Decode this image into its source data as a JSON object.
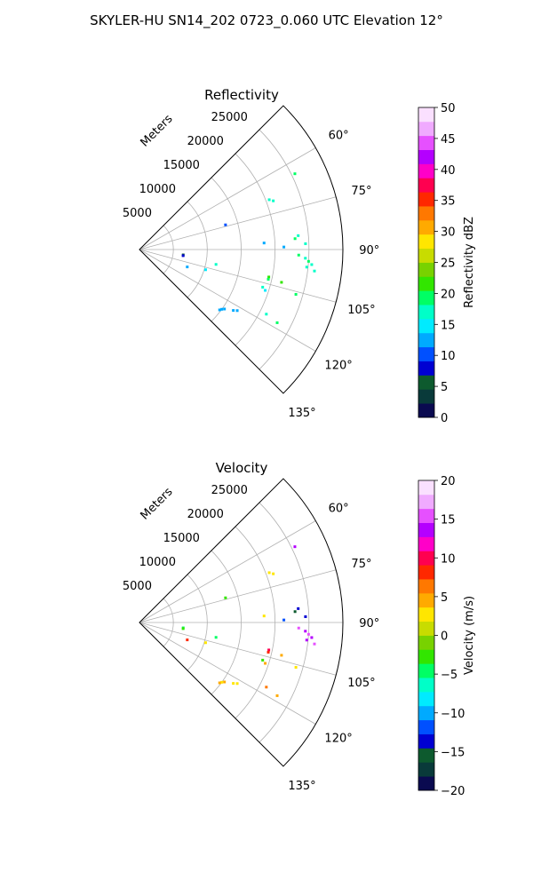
{
  "figure_title": "SKYLER-HU  SN14_202  0723_0.060 UTC Elevation 12°",
  "chart_data": [
    {
      "type": "scatter",
      "subtype": "polar-sector (PPI)",
      "title": "Reflectivity",
      "radial_label": "Meters",
      "r_ticks": [
        5000,
        10000,
        15000,
        20000,
        25000
      ],
      "r_tick_labels": [
        "5000",
        "10000",
        "15000",
        "20000",
        "25000"
      ],
      "rlim": [
        0,
        30000
      ],
      "theta_ticks": [
        60,
        75,
        90,
        105,
        120,
        135
      ],
      "theta_tick_labels": [
        "60°",
        "75°",
        "90°",
        "105°",
        "120°",
        "135°"
      ],
      "thetalim": [
        45,
        135
      ],
      "grid": true,
      "colorbar": {
        "label": "Reflectivity dBZ",
        "ticks": [
          0,
          5,
          10,
          15,
          20,
          25,
          30,
          35,
          40,
          45,
          50
        ],
        "tick_labels": [
          "0",
          "5",
          "10",
          "15",
          "20",
          "25",
          "30",
          "35",
          "40",
          "45",
          "50"
        ],
        "range": [
          0,
          50
        ],
        "colormap": [
          "#0a0a50",
          "#093a3a",
          "#0d5a2e",
          "#0000d2",
          "#0050ff",
          "#00aaff",
          "#00ebff",
          "#00ffc8",
          "#00ff64",
          "#32e600",
          "#78d200",
          "#c8dc00",
          "#ffe600",
          "#ffaa00",
          "#ff7800",
          "#ff2800",
          "#ff0050",
          "#ff00c8",
          "#b400ff",
          "#e650ff",
          "#f0aaff",
          "#fae0ff"
        ]
      },
      "points": [
        {
          "az": 64,
          "r": 25500,
          "v": 19
        },
        {
          "az": 69,
          "r": 20500,
          "v": 18
        },
        {
          "az": 70,
          "r": 21000,
          "v": 18
        },
        {
          "az": 74,
          "r": 13200,
          "v": 11
        },
        {
          "az": 85,
          "r": 23500,
          "v": 18
        },
        {
          "az": 86,
          "r": 23000,
          "v": 19
        },
        {
          "az": 87,
          "r": 18400,
          "v": 13
        },
        {
          "az": 88,
          "r": 24500,
          "v": 18
        },
        {
          "az": 89,
          "r": 21300,
          "v": 12
        },
        {
          "az": 92,
          "r": 23500,
          "v": 19
        },
        {
          "az": 93,
          "r": 24500,
          "v": 18
        },
        {
          "az": 94,
          "r": 25000,
          "v": 19
        },
        {
          "az": 95,
          "r": 25500,
          "v": 18
        },
        {
          "az": 96,
          "r": 24800,
          "v": 17
        },
        {
          "az": 97,
          "r": 26000,
          "v": 18
        },
        {
          "az": 97,
          "r": 6500,
          "v": 6
        },
        {
          "az": 98,
          "r": 6500,
          "v": 7
        },
        {
          "az": 101,
          "r": 11500,
          "v": 16
        },
        {
          "az": 102,
          "r": 19500,
          "v": 21
        },
        {
          "az": 103,
          "r": 19500,
          "v": 20
        },
        {
          "az": 103,
          "r": 21500,
          "v": 22
        },
        {
          "az": 106,
          "r": 24000,
          "v": 19
        },
        {
          "az": 107,
          "r": 10200,
          "v": 15
        },
        {
          "az": 107,
          "r": 19000,
          "v": 16
        },
        {
          "az": 108,
          "r": 19500,
          "v": 15
        },
        {
          "az": 110,
          "r": 7500,
          "v": 13
        },
        {
          "az": 117,
          "r": 21000,
          "v": 17
        },
        {
          "az": 118,
          "r": 23000,
          "v": 20
        },
        {
          "az": 122,
          "r": 17000,
          "v": 13
        },
        {
          "az": 123,
          "r": 16500,
          "v": 12
        },
        {
          "az": 125,
          "r": 15300,
          "v": 12
        },
        {
          "az": 126,
          "r": 15000,
          "v": 13
        },
        {
          "az": 127,
          "r": 14800,
          "v": 12
        }
      ]
    },
    {
      "type": "scatter",
      "subtype": "polar-sector (PPI)",
      "title": "Velocity",
      "radial_label": "Meters",
      "r_ticks": [
        5000,
        10000,
        15000,
        20000,
        25000
      ],
      "r_tick_labels": [
        "5000",
        "10000",
        "15000",
        "20000",
        "25000"
      ],
      "rlim": [
        0,
        30000
      ],
      "theta_ticks": [
        60,
        75,
        90,
        105,
        120,
        135
      ],
      "theta_tick_labels": [
        "60°",
        "75°",
        "90°",
        "105°",
        "120°",
        "135°"
      ],
      "thetalim": [
        45,
        135
      ],
      "grid": true,
      "colorbar": {
        "label": "Velocity (m/s)",
        "ticks": [
          -20,
          -15,
          -10,
          -5,
          0,
          5,
          10,
          15,
          20
        ],
        "tick_labels": [
          "−20",
          "−15",
          "−10",
          "−5",
          "0",
          "5",
          "10",
          "15",
          "20"
        ],
        "range": [
          -20,
          20
        ],
        "colormap": [
          "#0a0a50",
          "#093a3a",
          "#0d5a2e",
          "#0000d2",
          "#0050ff",
          "#00aaff",
          "#00ebff",
          "#00ffc8",
          "#00ff64",
          "#32e600",
          "#78d200",
          "#c8dc00",
          "#ffe600",
          "#ffaa00",
          "#ff7800",
          "#ff2800",
          "#ff0050",
          "#ff00c8",
          "#b400ff",
          "#e650ff",
          "#f0aaff",
          "#fae0ff"
        ]
      },
      "points": [
        {
          "az": 64,
          "r": 25500,
          "v": 14
        },
        {
          "az": 69,
          "r": 20500,
          "v": 3
        },
        {
          "az": 70,
          "r": 21000,
          "v": 3
        },
        {
          "az": 74,
          "r": 13200,
          "v": -2
        },
        {
          "az": 85,
          "r": 23500,
          "v": -14
        },
        {
          "az": 86,
          "r": 23000,
          "v": -15
        },
        {
          "az": 87,
          "r": 18400,
          "v": 2
        },
        {
          "az": 88,
          "r": 24500,
          "v": -13
        },
        {
          "az": 89,
          "r": 21300,
          "v": -11
        },
        {
          "az": 92,
          "r": 23500,
          "v": 15
        },
        {
          "az": 93,
          "r": 24500,
          "v": 14
        },
        {
          "az": 94,
          "r": 25000,
          "v": 16
        },
        {
          "az": 95,
          "r": 25500,
          "v": 13
        },
        {
          "az": 96,
          "r": 24800,
          "v": 14
        },
        {
          "az": 97,
          "r": 26000,
          "v": 15
        },
        {
          "az": 97,
          "r": 6500,
          "v": -4
        },
        {
          "az": 98,
          "r": 6500,
          "v": -3
        },
        {
          "az": 101,
          "r": 11500,
          "v": -5
        },
        {
          "az": 102,
          "r": 19500,
          "v": 10
        },
        {
          "az": 103,
          "r": 19500,
          "v": 9
        },
        {
          "az": 103,
          "r": 21500,
          "v": 4
        },
        {
          "az": 106,
          "r": 24000,
          "v": 2
        },
        {
          "az": 107,
          "r": 10200,
          "v": 3
        },
        {
          "az": 107,
          "r": 19000,
          "v": -3
        },
        {
          "az": 108,
          "r": 19500,
          "v": 4
        },
        {
          "az": 110,
          "r": 7500,
          "v": 8
        },
        {
          "az": 117,
          "r": 21000,
          "v": 6
        },
        {
          "az": 118,
          "r": 23000,
          "v": 4
        },
        {
          "az": 122,
          "r": 17000,
          "v": 2
        },
        {
          "az": 123,
          "r": 16500,
          "v": 3
        },
        {
          "az": 125,
          "r": 15300,
          "v": 4
        },
        {
          "az": 126,
          "r": 15000,
          "v": 3
        },
        {
          "az": 127,
          "r": 14800,
          "v": 5
        }
      ]
    }
  ]
}
